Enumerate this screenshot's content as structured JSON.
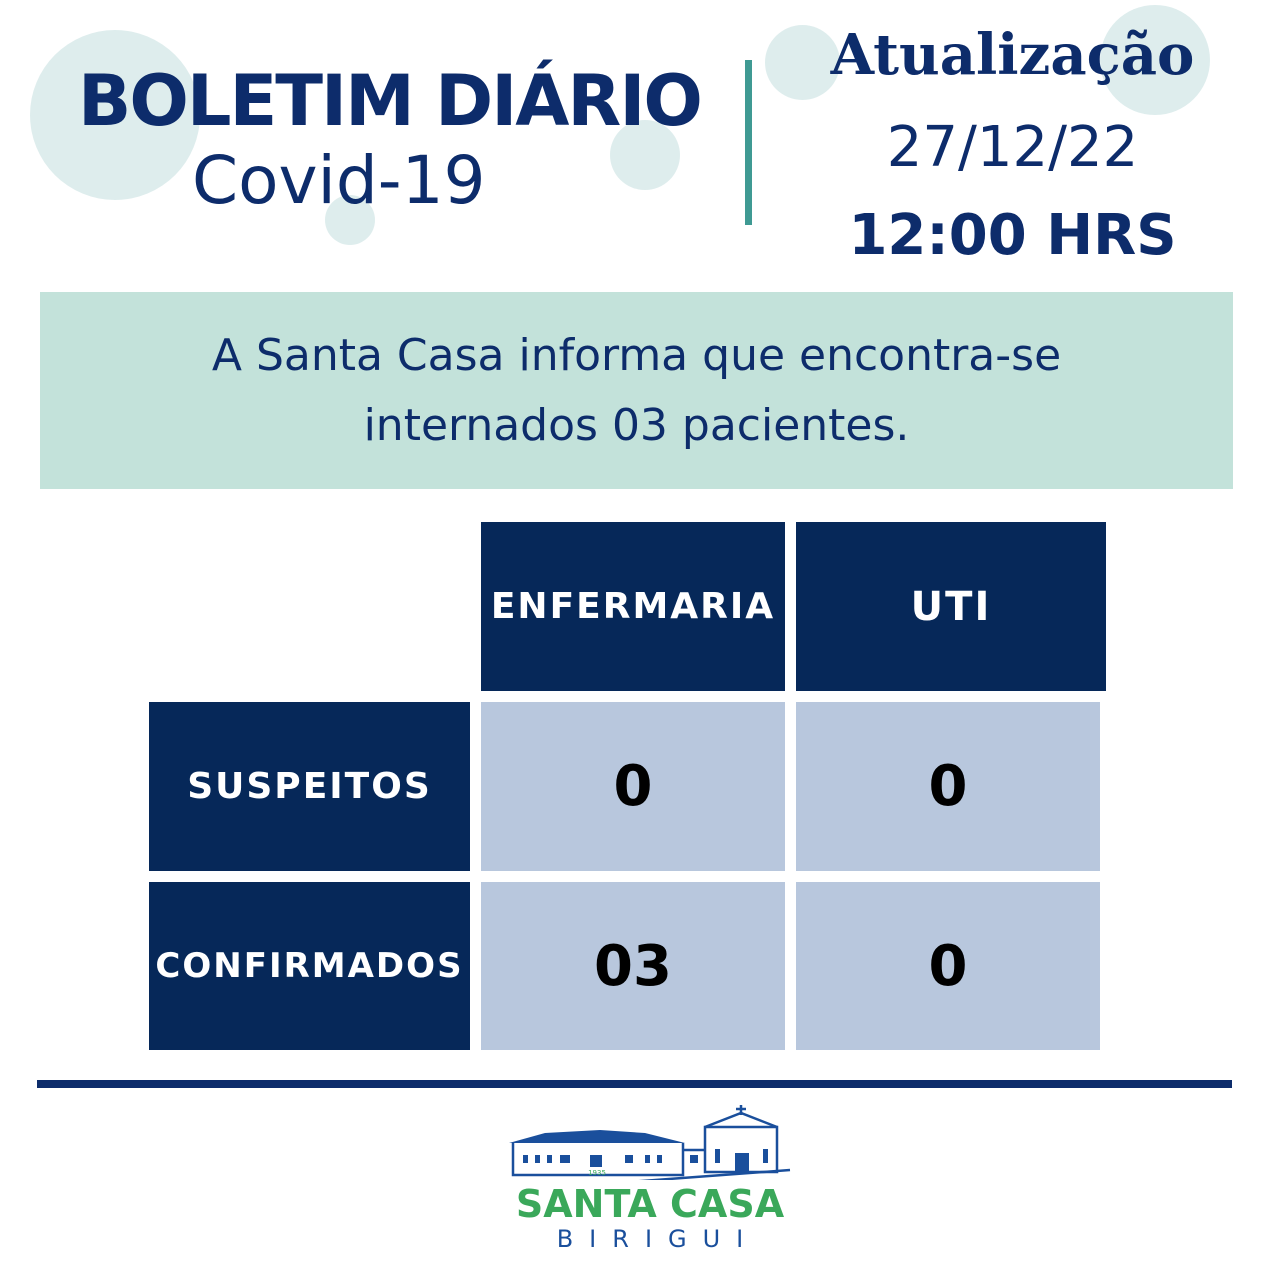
{
  "header": {
    "title": "BOLETIM DIÁRIO",
    "subtitle": "Covid-19",
    "update_label": "Atualização",
    "date": "27/12/22",
    "time": "12:00 HRS"
  },
  "notice": {
    "line1": "A Santa Casa informa que encontra-se",
    "line2": "internados 03 pacientes."
  },
  "table": {
    "columns": [
      "ENFERMARIA",
      "UTI"
    ],
    "rows": [
      {
        "label": "SUSPEITOS",
        "values": [
          "0",
          "0"
        ]
      },
      {
        "label": "CONFIRMADOS",
        "values": [
          "03",
          "0"
        ]
      }
    ]
  },
  "logo": {
    "name": "SANTA CASA",
    "city": "BIRIGUI",
    "year": "1935"
  },
  "colors": {
    "navy": "#062859",
    "teal": "#3f9a93",
    "band": "#c3e2da",
    "cell": "#b8c7dd",
    "logo_green": "#3aa85a"
  }
}
